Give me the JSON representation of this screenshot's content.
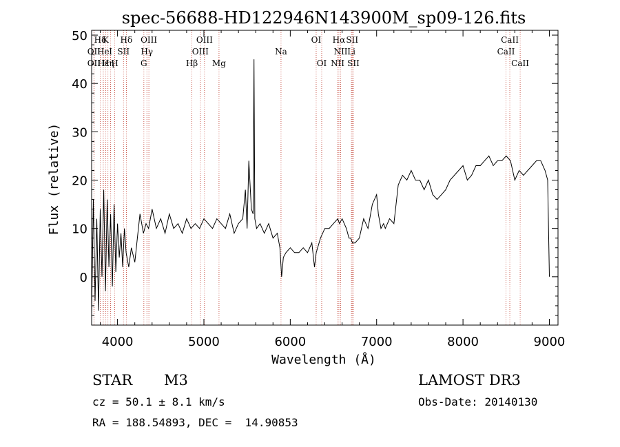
{
  "chart_data": {
    "type": "line",
    "title": "spec-56688-HD122946N143900M_sp09-126.fits",
    "xlabel": "Wavelength (Å)",
    "ylabel": "Flux (relative)",
    "xlim": [
      3700,
      9100
    ],
    "ylim": [
      -10,
      51
    ],
    "xticks": [
      4000,
      5000,
      6000,
      7000,
      8000,
      9000
    ],
    "xtick_labels": [
      "4000",
      "5000",
      "6000",
      "7000",
      "8000",
      "9000"
    ],
    "yticks": [
      0,
      10,
      20,
      30,
      40,
      50
    ],
    "ytick_labels": [
      "0",
      "10",
      "20",
      "30",
      "40",
      "50"
    ],
    "line_color": "#000000",
    "marker_color": "#c0392b",
    "series": [
      {
        "name": "flux",
        "x": [
          3700,
          3720,
          3740,
          3760,
          3780,
          3800,
          3820,
          3840,
          3860,
          3880,
          3900,
          3920,
          3940,
          3960,
          3980,
          4000,
          4020,
          4040,
          4060,
          4080,
          4100,
          4130,
          4160,
          4200,
          4230,
          4260,
          4300,
          4330,
          4360,
          4400,
          4450,
          4500,
          4550,
          4600,
          4650,
          4700,
          4750,
          4800,
          4850,
          4900,
          4950,
          5000,
          5050,
          5100,
          5150,
          5200,
          5250,
          5300,
          5350,
          5400,
          5450,
          5480,
          5500,
          5520,
          5550,
          5570,
          5580,
          5590,
          5610,
          5650,
          5700,
          5750,
          5800,
          5850,
          5880,
          5900,
          5910,
          5920,
          5950,
          6000,
          6050,
          6100,
          6150,
          6200,
          6250,
          6280,
          6300,
          6350,
          6400,
          6450,
          6500,
          6550,
          6570,
          6600,
          6650,
          6680,
          6700,
          6720,
          6750,
          6800,
          6850,
          6900,
          6950,
          7000,
          7020,
          7050,
          7080,
          7100,
          7150,
          7200,
          7250,
          7300,
          7350,
          7400,
          7450,
          7500,
          7550,
          7600,
          7650,
          7700,
          7750,
          7800,
          7850,
          7900,
          7950,
          8000,
          8050,
          8100,
          8150,
          8200,
          8250,
          8300,
          8350,
          8400,
          8450,
          8500,
          8550,
          8600,
          8650,
          8700,
          8750,
          8800,
          8850,
          8900,
          8950,
          8980,
          9000
        ],
        "y": [
          -8,
          16,
          -5,
          12,
          -7,
          14,
          0,
          18,
          -3,
          16,
          2,
          13,
          -2,
          15,
          1,
          11,
          4,
          9,
          2,
          10,
          5,
          2,
          6,
          3,
          8,
          13,
          9,
          11,
          10,
          14,
          10,
          12,
          9,
          13,
          10,
          11,
          9,
          12,
          10,
          11,
          10,
          12,
          11,
          10,
          12,
          11,
          10,
          13,
          9,
          11,
          12,
          18,
          10,
          24,
          14,
          13,
          45,
          12,
          10,
          11,
          9,
          11,
          8,
          9,
          6,
          0,
          2,
          4,
          5,
          6,
          5,
          5,
          6,
          5,
          7,
          2,
          5,
          8,
          10,
          10,
          11,
          12,
          11,
          12,
          10,
          8,
          8,
          7,
          7,
          8,
          12,
          10,
          15,
          17,
          13,
          10,
          11,
          10,
          12,
          11,
          19,
          21,
          20,
          22,
          20,
          20,
          18,
          20,
          17,
          16,
          17,
          18,
          20,
          21,
          22,
          23,
          20,
          21,
          23,
          23,
          24,
          25,
          23,
          24,
          24,
          25,
          24,
          20,
          22,
          21,
          22,
          23,
          24,
          24,
          22,
          20,
          0
        ]
      }
    ],
    "markers": [
      {
        "label": "Hδ",
        "x": 3800,
        "row": 0
      },
      {
        "label": "K",
        "x": 3862,
        "row": 0
      },
      {
        "label": "Hδ",
        "x": 4102,
        "row": 0
      },
      {
        "label": "OIII",
        "x": 4363,
        "row": 0
      },
      {
        "label": "OIII",
        "x": 5007,
        "row": 0
      },
      {
        "label": "OI",
        "x": 6300,
        "row": 0
      },
      {
        "label": "Hα",
        "x": 6563,
        "row": 0
      },
      {
        "label": "SII",
        "x": 6717,
        "row": 0
      },
      {
        "label": "CaII",
        "x": 8542,
        "row": 0
      },
      {
        "label": "OII",
        "x": 3727,
        "row": 1
      },
      {
        "label": "He",
        "x": 3834,
        "row": 1
      },
      {
        "label": "I",
        "x": 3920,
        "row": 1
      },
      {
        "label": "SII",
        "x": 4069,
        "row": 1
      },
      {
        "label": "Hγ",
        "x": 4340,
        "row": 1
      },
      {
        "label": "OIII",
        "x": 4959,
        "row": 1
      },
      {
        "label": "Na",
        "x": 5893,
        "row": 1
      },
      {
        "label": "NII",
        "x": 6584,
        "row": 1
      },
      {
        "label": "Li",
        "x": 6708,
        "row": 1
      },
      {
        "label": "CaII",
        "x": 8498,
        "row": 1
      },
      {
        "label": "OII",
        "x": 3727,
        "row": 2
      },
      {
        "label": "Hε",
        "x": 3835,
        "row": 2
      },
      {
        "label": "Hη",
        "x": 3889,
        "row": 2
      },
      {
        "label": "H",
        "x": 3968,
        "row": 2
      },
      {
        "label": "G",
        "x": 4305,
        "row": 2
      },
      {
        "label": "Hβ",
        "x": 4861,
        "row": 2
      },
      {
        "label": "Mg",
        "x": 5175,
        "row": 2
      },
      {
        "label": "OI",
        "x": 6364,
        "row": 2
      },
      {
        "label": "NII",
        "x": 6548,
        "row": 2
      },
      {
        "label": "SII",
        "x": 6731,
        "row": 2
      },
      {
        "label": "CaII",
        "x": 8662,
        "row": 2
      }
    ]
  },
  "info": {
    "class": "STAR",
    "subclass": "M3",
    "survey": "LAMOST DR3",
    "cz": "cz = 50.1 ± 8.1 km/s",
    "obs_date": "Obs-Date: 20140130",
    "coords": "RA = 188.54893, DEC =  14.90853"
  }
}
